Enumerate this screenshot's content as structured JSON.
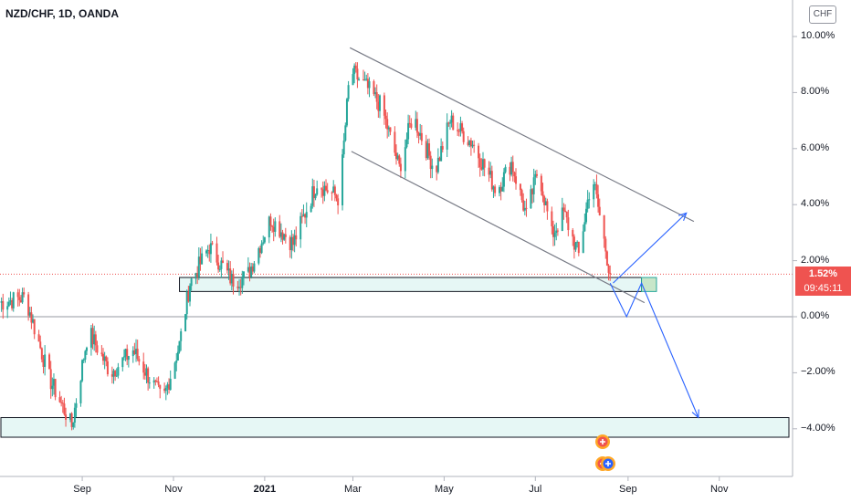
{
  "header": {
    "symbol_label": "NZD/CHF, 1D, OANDA",
    "currency_button": "CHF"
  },
  "price_tag": {
    "percent": "1.52%",
    "countdown": "09:45:11",
    "color": "#ef5350"
  },
  "colors": {
    "up": "#26a69a",
    "down": "#ef5350",
    "trendline": "#787b86",
    "projection": "#2962ff",
    "zone_fill": "#e6f7f5",
    "zone_border": "#131722"
  },
  "chart_data": {
    "type": "candlestick",
    "title": "NZD/CHF, 1D, OANDA",
    "y_unit": "%",
    "ylim": [
      -5.8,
      10.6
    ],
    "y_ticks": [
      "10.00%",
      "8.00%",
      "6.00%",
      "4.00%",
      "2.00%",
      "0.00%",
      "−2.00%",
      "−4.00%"
    ],
    "x_ticks": [
      "Sep",
      "Nov",
      "2021",
      "Mar",
      "May",
      "Jul",
      "Sep",
      "Nov"
    ],
    "x_ticks_bold": [
      "2021"
    ],
    "xlim": [
      "2020-07-08",
      "2021-12-20"
    ],
    "last_value": 1.52,
    "zero_line": 0.0,
    "path_anchors": [
      {
        "date": "2020-07-08",
        "value": 0.5
      },
      {
        "date": "2020-07-25",
        "value": 0.7
      },
      {
        "date": "2020-08-10",
        "value": -2.2
      },
      {
        "date": "2020-08-25",
        "value": -3.9
      },
      {
        "date": "2020-09-05",
        "value": -0.5
      },
      {
        "date": "2020-09-20",
        "value": -2.0
      },
      {
        "date": "2020-10-05",
        "value": -1.2
      },
      {
        "date": "2020-10-25",
        "value": -3.0
      },
      {
        "date": "2020-11-05",
        "value": -1.0
      },
      {
        "date": "2020-11-12",
        "value": 1.2
      },
      {
        "date": "2020-11-25",
        "value": 2.5
      },
      {
        "date": "2020-12-10",
        "value": 1.3
      },
      {
        "date": "2020-12-20",
        "value": 1.4
      },
      {
        "date": "2021-01-05",
        "value": 3.5
      },
      {
        "date": "2021-01-20",
        "value": 2.6
      },
      {
        "date": "2021-02-05",
        "value": 4.8
      },
      {
        "date": "2021-02-20",
        "value": 4.2
      },
      {
        "date": "2021-02-27",
        "value": 8.8
      },
      {
        "date": "2021-03-10",
        "value": 8.2
      },
      {
        "date": "2021-03-20",
        "value": 7.5
      },
      {
        "date": "2021-04-01",
        "value": 5.3
      },
      {
        "date": "2021-04-10",
        "value": 7.2
      },
      {
        "date": "2021-04-25",
        "value": 5.2
      },
      {
        "date": "2021-05-05",
        "value": 7.0
      },
      {
        "date": "2021-05-20",
        "value": 6.2
      },
      {
        "date": "2021-06-05",
        "value": 4.5
      },
      {
        "date": "2021-06-15",
        "value": 5.5
      },
      {
        "date": "2021-06-25",
        "value": 3.6
      },
      {
        "date": "2021-07-03",
        "value": 5.3
      },
      {
        "date": "2021-07-12",
        "value": 2.9
      },
      {
        "date": "2021-07-20",
        "value": 3.7
      },
      {
        "date": "2021-07-30",
        "value": 2.2
      },
      {
        "date": "2021-08-08",
        "value": 5.1
      },
      {
        "date": "2021-08-14",
        "value": 3.3
      },
      {
        "date": "2021-08-20",
        "value": 1.52
      }
    ],
    "trend_lines": [
      {
        "from": {
          "date": "2021-02-27",
          "value": 9.6
        },
        "to": {
          "date": "2021-10-15",
          "value": 3.4
        }
      },
      {
        "from": {
          "date": "2021-02-28",
          "value": 5.9
        },
        "to": {
          "date": "2021-09-12",
          "value": 0.5
        }
      }
    ],
    "zones": [
      {
        "from": "2020-11-05",
        "to": "2021-09-10",
        "low": 0.9,
        "high": 1.4
      },
      {
        "from": "2020-07-08",
        "to": "2021-12-18",
        "low": -4.3,
        "high": -3.6
      },
      {
        "from": "2021-09-10",
        "to": "2021-09-20",
        "low": 0.9,
        "high": 1.4
      }
    ],
    "projections": [
      [
        {
          "date": "2021-08-22",
          "value": 1.2
        },
        {
          "date": "2021-10-10",
          "value": 3.7
        }
      ],
      [
        {
          "date": "2021-08-20",
          "value": 1.2
        },
        {
          "date": "2021-08-31",
          "value": 0.0
        },
        {
          "date": "2021-09-10",
          "value": 1.2
        },
        {
          "date": "2021-10-18",
          "value": -3.6
        }
      ]
    ],
    "event_markers": [
      {
        "date": "2021-08-15",
        "count": 3
      }
    ]
  }
}
